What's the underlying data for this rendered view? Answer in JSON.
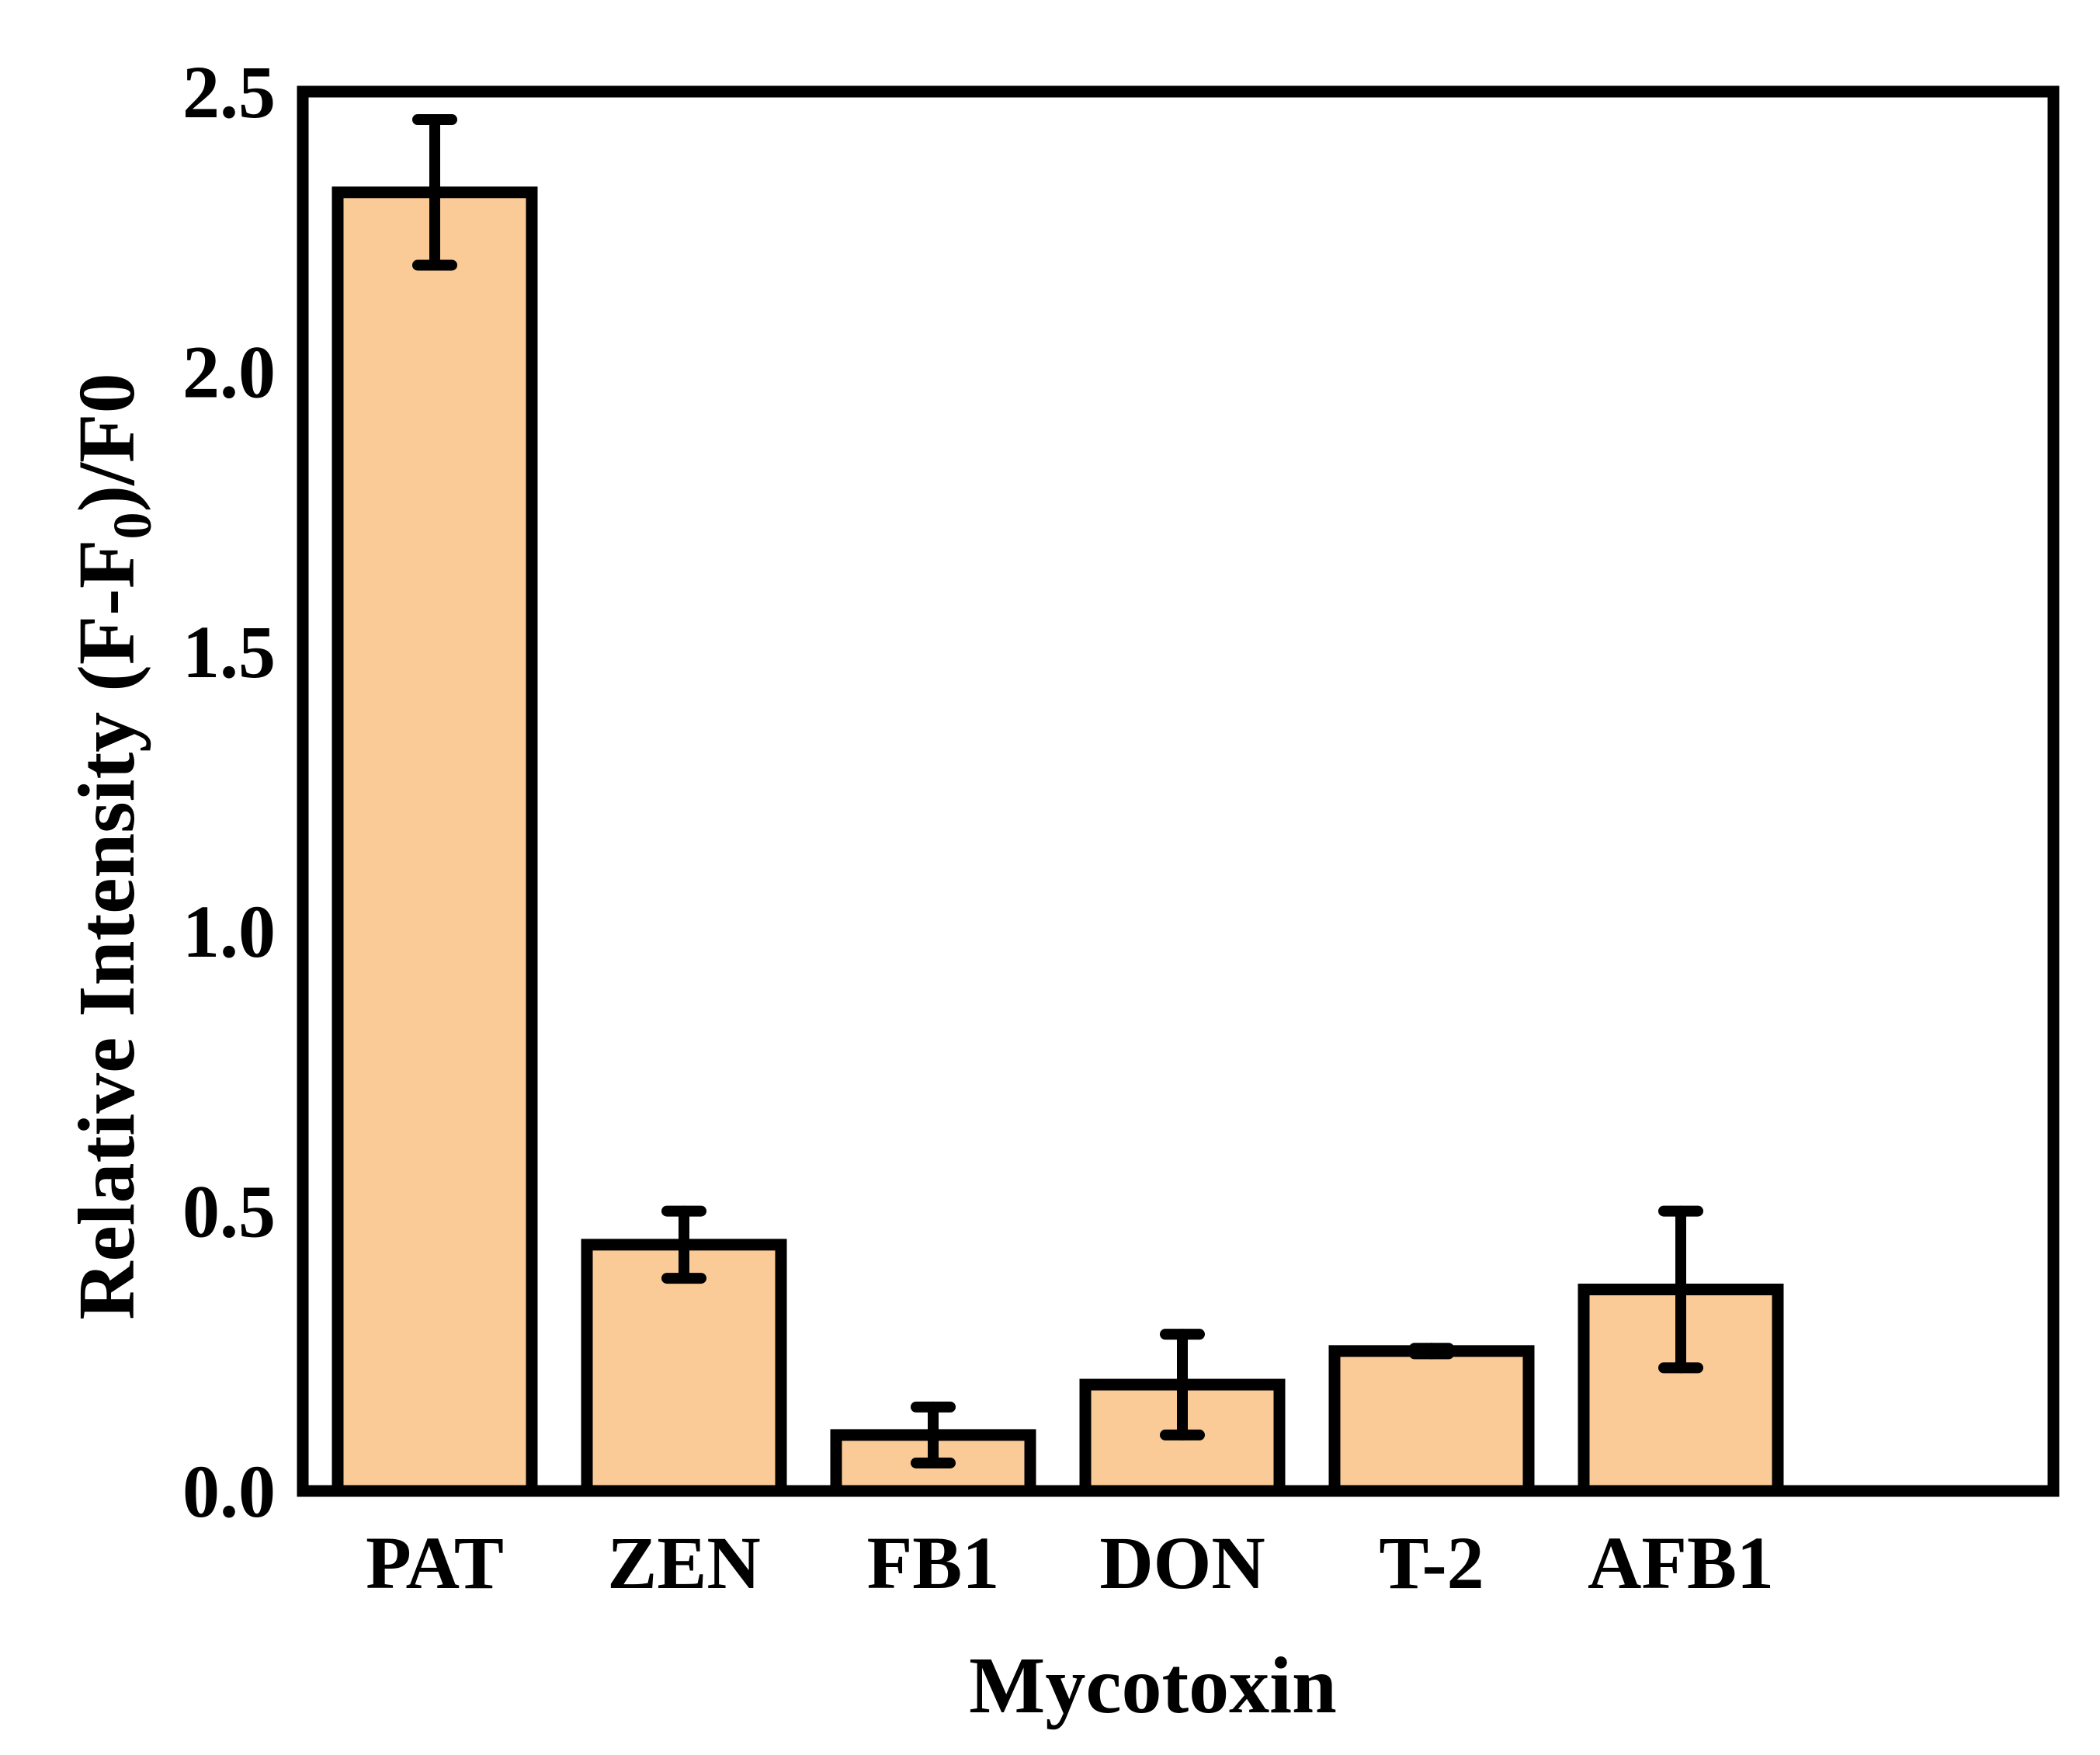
{
  "chart_data": {
    "type": "bar",
    "title": "",
    "xlabel": "Mycotoxin",
    "ylabel_parts": {
      "main": "Relative Intensity (F-F",
      "sub": "0",
      "tail": ")/F0"
    },
    "categories": [
      "PAT",
      "ZEN",
      "FB1",
      "DON",
      "T-2",
      "AFB1"
    ],
    "values": [
      2.32,
      0.44,
      0.1,
      0.19,
      0.25,
      0.36
    ],
    "errors": [
      0.13,
      0.06,
      0.05,
      0.09,
      0.005,
      0.14
    ],
    "ylim": [
      0,
      2.5
    ],
    "yticks": [
      0.0,
      0.5,
      1.0,
      1.5,
      2.0,
      2.5
    ],
    "ytick_labels": [
      "0.0",
      "0.5",
      "1.0",
      "1.5",
      "2.0",
      "2.5"
    ],
    "bar_color": "#FBCB97",
    "edge_color": "#000000",
    "grid": false,
    "legend": "none"
  }
}
